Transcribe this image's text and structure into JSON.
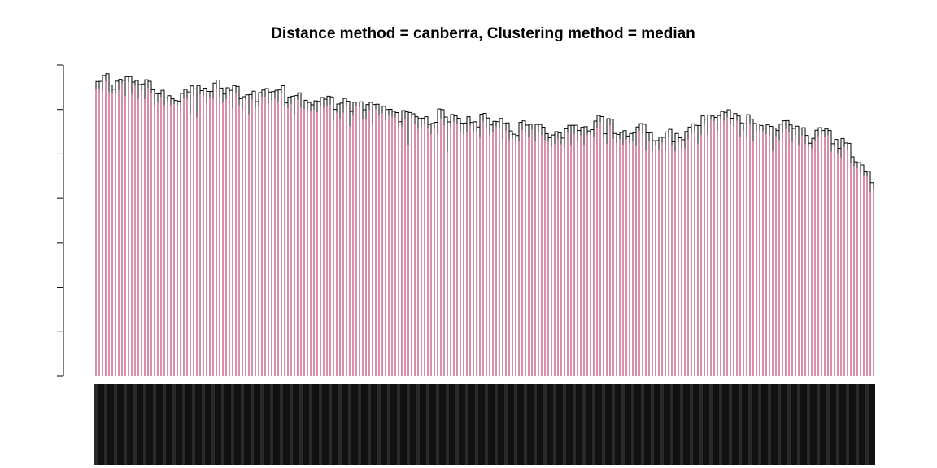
{
  "chart_data": {
    "type": "dendrogram",
    "title": "Distance method = canberra, Clustering method = median",
    "xlabel": "",
    "ylabel": "",
    "y_ticks_labeled": false,
    "leaf_labels_legible": false,
    "leaf_count_approx": 240,
    "leaf_stem_color": "#b22250",
    "branch_color": "#000000",
    "grid": false,
    "legend": "none",
    "merge_height_profile": {
      "description": "branch heights relative to the plotted y-range (0 = bottom of axis, 1 = top tick)",
      "x_fraction": [
        0.0,
        0.05,
        0.1,
        0.15,
        0.2,
        0.25,
        0.3,
        0.35,
        0.4,
        0.45,
        0.5,
        0.55,
        0.6,
        0.65,
        0.7,
        0.75,
        0.8,
        0.85,
        0.9,
        0.95,
        1.0
      ],
      "height_fraction": [
        0.98,
        0.97,
        0.93,
        0.95,
        0.92,
        0.93,
        0.9,
        0.89,
        0.86,
        0.85,
        0.84,
        0.82,
        0.8,
        0.84,
        0.81,
        0.78,
        0.86,
        0.83,
        0.82,
        0.8,
        0.68
      ]
    }
  }
}
